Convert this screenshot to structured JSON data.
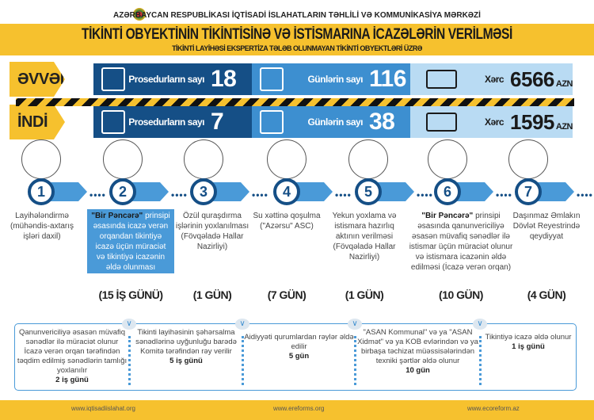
{
  "header": {
    "organization": "AZƏRBAYCAN RESPUBLİKASI İQTİSADİ İSLAHATLARIN TƏHLİLİ VƏ KOMMUNİKASİYA MƏRKƏZİ",
    "title": "TİKİNTİ OBYEKTİNİN TİKİNTİSİNƏ VƏ İSTİSMARINA İCAZƏLƏRİN VERİLMƏSİ",
    "subtitle": "TİKİNTİ LAYİHƏSİ EKSPERTİZA TƏLƏB OLUNMAYAN TİKİNTİ OBYEKTLƏRİ ÜZRƏ"
  },
  "comparison": [
    {
      "label": "ƏVVƏL",
      "procedures_label": "Prosedurların sayı",
      "procedures": "18",
      "days_label": "Günlərin sayı",
      "days": "116",
      "cost_label": "Xərc",
      "cost": "6566",
      "currency": "AZN"
    },
    {
      "label": "İNDİ",
      "procedures_label": "Prosedurların sayı",
      "procedures": "7",
      "days_label": "Günlərin sayı",
      "days": "38",
      "cost_label": "Xərc",
      "cost": "1595",
      "currency": "AZN"
    }
  ],
  "steps": [
    {
      "num": "1",
      "bold": "",
      "text": "Layihələndirmə (mühəndis-axtarış işləri daxil)",
      "duration": ""
    },
    {
      "num": "2",
      "bold": "\"Bir Pəncərə\"",
      "text": " prinsipi əsasında icazə verən orqandan tikintiyə icazə üçün müraciət və tikintiyə icazənin əldə olunması",
      "duration": "(15 İŞ GÜNÜ)"
    },
    {
      "num": "3",
      "bold": "",
      "text": "Özül quraşdırma işlərinin yoxlanılması (Fövqəladə Hallar Nazirliyi)",
      "duration": "(1 GÜN)"
    },
    {
      "num": "4",
      "bold": "",
      "text": "Su xəttinə qoşulma (\"Azərsu\" ASC)",
      "duration": "(7 GÜN)"
    },
    {
      "num": "5",
      "bold": "",
      "text": "Yekun yoxlama və istismara hazırlıq aktının verilməsi (Fövqəladə Hallar Nazirliyi)",
      "duration": "(1 GÜN)"
    },
    {
      "num": "6",
      "bold": "\"Bir Pəncərə\"",
      "text": " prinsipi əsasında qanunvericiliyə əsasən müvafiq sənədlər ilə istismar üçün müraciət olunur və istismara icazənin əldə edilməsi (İcazə verən orqan)",
      "duration": "(10 GÜN)"
    },
    {
      "num": "7",
      "bold": "",
      "text": "Daşınmaz Əmlakın Dövlət Reyestrində qeydiyyat",
      "duration": "(4 GÜN)"
    }
  ],
  "substeps": [
    {
      "text": "Qanunvericiliyə əsasən müvafiq sənədlər ilə müraciət olunur İcazə verən orqan tərəfindən təqdim edilmiş sənədlərin tamlığı yoxlanılır",
      "time": "2 iş günü"
    },
    {
      "text": "Tikinti layihəsinin şəhərsalma sənədlərinə uyğunluğu barədə Komitə tərəfindən rəy verilir",
      "time": "5 iş günü"
    },
    {
      "text": "Aidiyyəti qurumlardan rəylər əldə edilir",
      "time": "5 gün"
    },
    {
      "text": "\"ASAN Kommunal\" və ya \"ASAN Xidmət\" və ya KOB evlərindən və ya birbaşa təchizat müəssisələrindən texniki şərtlər əldə olunur",
      "time": "10 gün"
    },
    {
      "text": "Tikintiyə icazə əldə olunur",
      "time": "1 iş günü"
    }
  ],
  "footer": {
    "links": [
      "www.iqtisadiislahat.org",
      "www.ereforms.org",
      "www.ecoreform.az"
    ]
  },
  "colors": {
    "yellow": "#f6c12e",
    "dark_blue": "#154f86",
    "mid_blue": "#3d8fd0",
    "light_blue": "#b9dbf3"
  }
}
